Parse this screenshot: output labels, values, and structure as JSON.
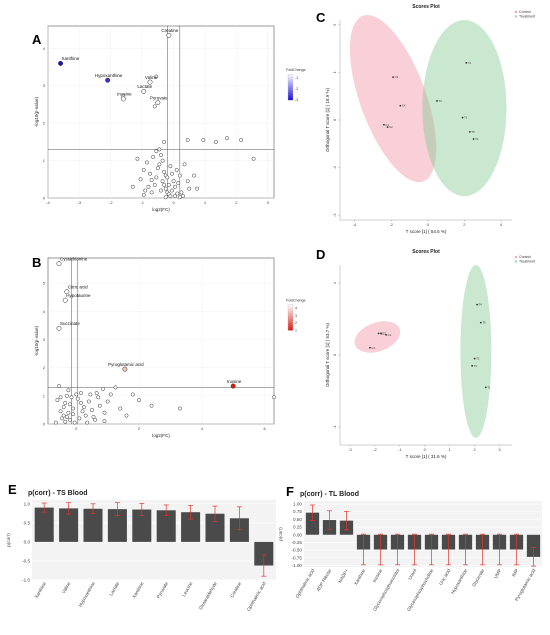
{
  "panels": {
    "A": "A",
    "B": "B",
    "C": "C",
    "D": "D",
    "E": "E",
    "F": "F"
  },
  "chart_data": [
    {
      "id": "A",
      "type": "scatter",
      "kind": "volcano",
      "xlabel": "log2(FC)",
      "ylabel": "-log10(p-value)",
      "xlim": [
        -4,
        3.2
      ],
      "ylim": [
        0,
        4.6
      ],
      "xticks": [
        -4,
        -3,
        -2,
        -1,
        0,
        1,
        2,
        3
      ],
      "yticks": [
        0,
        1,
        2,
        3,
        4
      ],
      "thresholds": {
        "x": [
          -0.2,
          0.2
        ],
        "y": 1.3
      },
      "legend": {
        "title": "FoldChange",
        "ticks": [
          "-1",
          "-2",
          "-3"
        ],
        "colors": [
          "#ffffff",
          "#1a0fd6"
        ]
      },
      "highlighted": [
        {
          "label": "Xanthine",
          "x": -3.6,
          "y": 3.6,
          "color": "#1a13d4"
        },
        {
          "label": "Hypoxanthine",
          "x": -2.1,
          "y": 3.15,
          "color": "#3a2fd0"
        },
        {
          "label": "Creatine",
          "x": -0.15,
          "y": 4.35,
          "color": "#ffffff"
        },
        {
          "label": "Valine",
          "x": -0.75,
          "y": 3.1,
          "color": "#ffffff"
        },
        {
          "label": "Lactate",
          "x": -0.95,
          "y": 2.85,
          "color": "#ffffff"
        },
        {
          "label": "Inosine",
          "x": -1.6,
          "y": 2.65,
          "color": "#ffffff"
        },
        {
          "label": "Pyruvate",
          "x": -0.5,
          "y": 2.55,
          "color": "#ffffff"
        }
      ],
      "points": [
        [
          -0.55,
          3.25
        ],
        [
          -1.6,
          2.72
        ],
        [
          -0.6,
          2.45
        ],
        [
          1.7,
          1.6
        ],
        [
          2.15,
          1.55
        ],
        [
          2.55,
          1.05
        ],
        [
          0.95,
          1.55
        ],
        [
          1.35,
          1.5
        ],
        [
          0.45,
          1.55
        ],
        [
          -0.3,
          1.5
        ],
        [
          -0.45,
          1.3
        ],
        [
          -0.4,
          1.15
        ],
        [
          -0.35,
          1.0
        ],
        [
          -0.45,
          0.9
        ],
        [
          -0.5,
          0.8
        ],
        [
          -0.3,
          0.7
        ],
        [
          -0.25,
          0.6
        ],
        [
          -0.55,
          0.55
        ],
        [
          -0.35,
          0.45
        ],
        [
          -0.3,
          0.35
        ],
        [
          -0.25,
          0.25
        ],
        [
          -0.4,
          0.2
        ],
        [
          -0.2,
          0.15
        ],
        [
          -0.15,
          0.1
        ],
        [
          -0.1,
          0.05
        ],
        [
          -0.05,
          0.2
        ],
        [
          0.05,
          0.3
        ],
        [
          -0.85,
          0.95
        ],
        [
          -0.95,
          0.75
        ],
        [
          -0.75,
          0.65
        ],
        [
          -0.6,
          0.35
        ],
        [
          -0.7,
          0.15
        ],
        [
          -0.8,
          0.3
        ],
        [
          -1.05,
          0.5
        ],
        [
          -0.9,
          0.2
        ],
        [
          0.15,
          0.4
        ],
        [
          0.2,
          0.6
        ],
        [
          0.25,
          0.15
        ],
        [
          0.3,
          0.05
        ],
        [
          0.1,
          0.75
        ],
        [
          0.35,
          0.9
        ],
        [
          0.45,
          0.45
        ],
        [
          0.5,
          0.25
        ],
        [
          0.12,
          0.12
        ],
        [
          -0.15,
          0.35
        ],
        [
          -0.2,
          0.55
        ],
        [
          -0.1,
          0.85
        ],
        [
          0.0,
          0.45
        ],
        [
          -0.05,
          0.65
        ],
        [
          0.05,
          0.05
        ],
        [
          -0.25,
          0.02
        ],
        [
          0.2,
          0.02
        ],
        [
          -0.65,
          1.1
        ],
        [
          -0.55,
          1.25
        ],
        [
          -1.15,
          1.05
        ],
        [
          -0.7,
          0.48
        ],
        [
          -0.95,
          0.08
        ],
        [
          0.65,
          0.6
        ],
        [
          0.75,
          0.25
        ],
        [
          -1.3,
          0.3
        ]
      ]
    },
    {
      "id": "B",
      "type": "scatter",
      "kind": "volcano",
      "xlabel": "log2(FC)",
      "ylabel": "-log10(p-value)",
      "xlim": [
        -0.9,
        6.3
      ],
      "ylim": [
        0,
        5.9
      ],
      "xticks": [
        0,
        2,
        4,
        6
      ],
      "yticks": [
        0,
        1,
        2,
        3,
        4,
        5
      ],
      "thresholds": {
        "x": [
          -0.15,
          0.05
        ],
        "y": 1.3
      },
      "legend": {
        "title": "FoldChange",
        "ticks": [
          "4",
          "3",
          "2",
          "1"
        ],
        "colors": [
          "#ffffff",
          "#d81e12"
        ]
      },
      "highlighted": [
        {
          "label": "Cystathionine",
          "x": -0.55,
          "y": 5.7,
          "color": "#ffffff"
        },
        {
          "label": "Citric acid",
          "x": -0.3,
          "y": 4.7,
          "color": "#ffffff"
        },
        {
          "label": "Hypotaurine",
          "x": -0.35,
          "y": 4.4,
          "color": "#ffffff"
        },
        {
          "label": "Succinate",
          "x": -0.55,
          "y": 3.4,
          "color": "#ffffff"
        },
        {
          "label": "Pyroglutamic acid",
          "x": 1.55,
          "y": 1.95,
          "color": "#f2c7b5"
        },
        {
          "label": "Inosine",
          "x": 5.0,
          "y": 1.35,
          "color": "#d81e12"
        }
      ],
      "points": [
        [
          1.25,
          1.3
        ],
        [
          0.85,
          1.25
        ],
        [
          1.1,
          1.05
        ],
        [
          0.65,
          1.1
        ],
        [
          0.45,
          1.05
        ],
        [
          0.15,
          1.1
        ],
        [
          0.0,
          1.05
        ],
        [
          -0.3,
          1.0
        ],
        [
          -0.5,
          0.95
        ],
        [
          -0.6,
          0.85
        ],
        [
          -0.35,
          0.75
        ],
        [
          -0.2,
          0.7
        ],
        [
          -0.4,
          0.6
        ],
        [
          -0.5,
          0.45
        ],
        [
          -0.25,
          0.4
        ],
        [
          -0.1,
          0.35
        ],
        [
          -0.3,
          0.25
        ],
        [
          -0.45,
          0.2
        ],
        [
          -0.2,
          0.15
        ],
        [
          -0.05,
          0.05
        ],
        [
          -0.35,
          0.08
        ],
        [
          0.1,
          0.2
        ],
        [
          0.2,
          0.45
        ],
        [
          0.3,
          0.3
        ],
        [
          0.25,
          0.6
        ],
        [
          0.4,
          0.8
        ],
        [
          0.5,
          0.5
        ],
        [
          0.6,
          0.15
        ],
        [
          0.75,
          0.65
        ],
        [
          0.9,
          0.4
        ],
        [
          1.0,
          0.8
        ],
        [
          1.4,
          0.55
        ],
        [
          1.6,
          0.3
        ],
        [
          2.0,
          0.85
        ],
        [
          2.4,
          0.65
        ],
        [
          3.3,
          0.55
        ],
        [
          6.3,
          0.95
        ],
        [
          -0.65,
          0.05
        ],
        [
          -0.1,
          0.55
        ],
        [
          0.05,
          0.9
        ],
        [
          -0.55,
          1.35
        ],
        [
          0.35,
          0.05
        ],
        [
          0.55,
          0.25
        ],
        [
          0.15,
          0.75
        ],
        [
          -0.25,
          1.2
        ],
        [
          1.8,
          1.05
        ],
        [
          0.7,
          0.95
        ],
        [
          -0.15,
          0.95
        ],
        [
          0.9,
          0.1
        ],
        [
          -0.4,
          0.3
        ]
      ]
    },
    {
      "id": "C",
      "type": "scatter",
      "kind": "scores",
      "title": "Scores Plot",
      "xlabel": "T score [1] ( 54.5 %)",
      "ylabel": "Orthogonal T score [1] ( 18.9 %)",
      "xlim": [
        -4.8,
        4.6
      ],
      "ylim": [
        -2.1,
        2.1
      ],
      "xticks": [
        -4,
        -2,
        0,
        2,
        4
      ],
      "yticks": [
        -2,
        -1,
        0,
        1,
        2
      ],
      "legend": [
        {
          "name": "Control",
          "color": "#f2a3b3"
        },
        {
          "name": "Treatment",
          "color": "#9fd9ac"
        }
      ],
      "groups": [
        {
          "name": "Control",
          "color": "#f08da2",
          "ellipse": {
            "cx": -1.9,
            "cy": 0.45,
            "rx": 1.8,
            "ry": 1.85,
            "rot": -20
          },
          "points": [
            {
              "label": "C3",
              "x": -1.9,
              "y": 0.9
            },
            {
              "label": "C4",
              "x": -1.5,
              "y": 0.3
            },
            {
              "label": "C1",
              "x": -2.4,
              "y": -0.1
            },
            {
              "label": "C2",
              "x": -2.2,
              "y": -0.15
            }
          ]
        },
        {
          "name": "Treatment",
          "color": "#7ec98d",
          "ellipse": {
            "cx": 2.0,
            "cy": 0.25,
            "rx": 2.3,
            "ry": 1.85,
            "rot": 0
          },
          "points": [
            {
              "label": "T4",
              "x": 2.1,
              "y": 1.2
            },
            {
              "label": "T3",
              "x": 0.5,
              "y": 0.4
            },
            {
              "label": "T1",
              "x": 1.9,
              "y": 0.05
            },
            {
              "label": "T5",
              "x": 2.3,
              "y": -0.25
            },
            {
              "label": "T2",
              "x": 2.5,
              "y": -0.4
            }
          ]
        }
      ]
    },
    {
      "id": "D",
      "type": "scatter",
      "kind": "scores",
      "title": "Scores Plot",
      "xlabel": "T score [1] ( 31.6 %)",
      "ylabel": "Orthogonal T score [1] ( 53.7 %)",
      "xlim": [
        -3.4,
        3.5
      ],
      "ylim": [
        -1.25,
        1.25
      ],
      "xticks": [
        -3,
        -2,
        -1,
        0,
        1,
        2,
        3
      ],
      "yticks": [
        -1,
        0,
        1
      ],
      "legend": [
        {
          "name": "Control",
          "color": "#f2a3b3"
        },
        {
          "name": "Treatment",
          "color": "#9fd9ac"
        }
      ],
      "groups": [
        {
          "name": "Control",
          "color": "#f08da2",
          "ellipse": {
            "cx": -1.9,
            "cy": 0.25,
            "rx": 0.95,
            "ry": 0.2,
            "rot": -20
          },
          "points": [
            {
              "label": "C4",
              "x": -2.2,
              "y": 0.1
            },
            {
              "label": "C2",
              "x": -1.85,
              "y": 0.3
            },
            {
              "label": "C3",
              "x": -1.75,
              "y": 0.3
            },
            {
              "label": "C1",
              "x": -1.55,
              "y": 0.28
            }
          ]
        },
        {
          "name": "Treatment",
          "color": "#7ec98d",
          "ellipse": {
            "cx": 2.05,
            "cy": 0.05,
            "rx": 0.62,
            "ry": 1.2,
            "rot": 0
          },
          "points": [
            {
              "label": "T4",
              "x": 2.1,
              "y": 0.7
            },
            {
              "label": "T5",
              "x": 2.25,
              "y": 0.45
            },
            {
              "label": "T2",
              "x": 2.0,
              "y": -0.05
            },
            {
              "label": "T3",
              "x": 1.9,
              "y": -0.15
            },
            {
              "label": "T1",
              "x": 2.45,
              "y": -0.45
            }
          ]
        }
      ]
    },
    {
      "id": "E",
      "type": "bar",
      "title": "p(corr) - TS Blood",
      "ylabel": "p(corr)",
      "ylim": [
        -1.0,
        1.1
      ],
      "yticks": [
        1.0,
        0.5,
        0.0,
        -0.5,
        -1.0
      ],
      "ytick_labels": [
        "1.0",
        "0.5",
        "0.0",
        "-0.5",
        "-1.0"
      ],
      "categories": [
        "Xanthine",
        "Valine",
        "Hypoxanthine",
        "Lactate",
        "Xanthine",
        "Pyruvate",
        "Leucine",
        "Glutaraldehyde",
        "Creatine",
        "Ophthalmic acid"
      ],
      "values": [
        0.9,
        0.88,
        0.87,
        0.86,
        0.85,
        0.83,
        0.78,
        0.74,
        0.62,
        -0.62
      ],
      "errors": [
        0.12,
        0.15,
        0.13,
        0.17,
        0.16,
        0.14,
        0.18,
        0.2,
        0.3,
        0.28
      ]
    },
    {
      "id": "F",
      "type": "bar",
      "title": "p(corr) - TL Blood",
      "ylabel": "p(corr)",
      "ylim": [
        -1.05,
        1.1
      ],
      "yticks": [
        1.0,
        0.75,
        0.5,
        0.25,
        0.0,
        -0.25,
        -0.5,
        -0.75,
        -1.0
      ],
      "ytick_labels": [
        "1.00",
        "0.75",
        "0.50",
        "0.25",
        "0.00",
        "-0.25",
        "-0.50",
        "-0.75",
        "-1.00"
      ],
      "categories": [
        "Ophthalmic acid",
        "ADP Ribose",
        "NADP+",
        "Xanthine",
        "Inosine",
        "Glycerophosphoinositol",
        "Uracil",
        "Glycerophosphocholine",
        "Uric acid",
        "Hypoxanthine",
        "Glycerate",
        "UMP",
        "IMP",
        "Pyroglutamic acid"
      ],
      "values": [
        0.72,
        0.48,
        0.46,
        -0.48,
        -0.48,
        -0.48,
        -0.48,
        -0.48,
        -0.48,
        -0.48,
        -0.48,
        -0.48,
        -0.48,
        -0.72
      ],
      "errors": [
        0.25,
        0.3,
        0.3,
        0.5,
        0.5,
        0.5,
        0.5,
        0.5,
        0.5,
        0.5,
        0.5,
        0.5,
        0.5,
        0.3
      ]
    }
  ]
}
